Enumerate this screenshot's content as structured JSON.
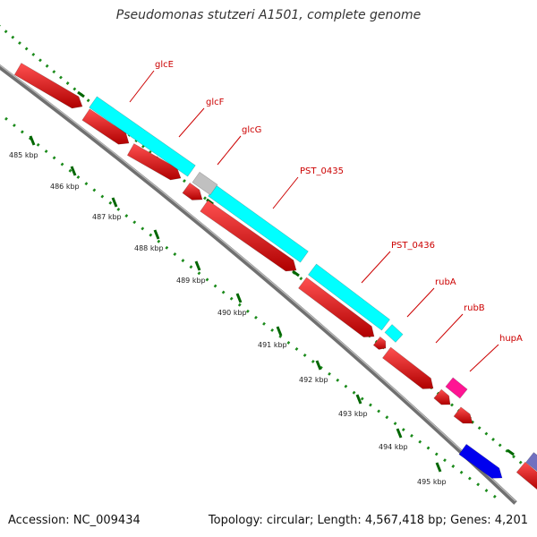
{
  "title": "Pseudomonas stutzeri A1501, complete genome",
  "footer": {
    "accession": "Accession: NC_009434",
    "summary": "Topology: circular; Length: 4,567,418 bp; Genes: 4,201"
  },
  "colors": {
    "cds": "#ff0000",
    "rna": "#00ffff",
    "other": "#c0c0c0",
    "pink": "#ff1493",
    "blue": "#0000ee",
    "purple": "#7070c0",
    "label": "#cc0000",
    "tick": "#006600",
    "backbone": "#808080"
  },
  "kbp_ticks": [
    "485 kbp",
    "486 kbp",
    "487 kbp",
    "488 kbp",
    "489 kbp",
    "490 kbp",
    "491 kbp",
    "492 kbp",
    "493 kbp",
    "494 kbp",
    "495 kbp"
  ],
  "gene_labels": [
    "glcE",
    "glcF",
    "glcG",
    "PST_0435",
    "PST_0436",
    "rubA",
    "rubB",
    "hupA"
  ]
}
